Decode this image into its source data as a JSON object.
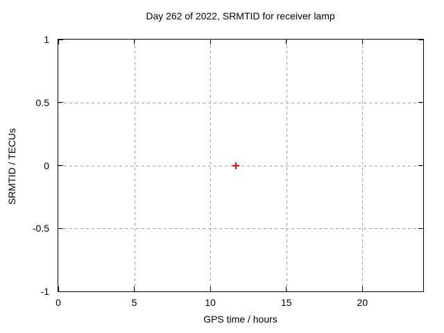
{
  "chart_data": {
    "type": "scatter",
    "title": "Day 262 of 2022, SRMTID for receiver lamp",
    "xlabel": "GPS time / hours",
    "ylabel": "SRMTID / TECUs",
    "xlim": [
      0,
      24
    ],
    "ylim": [
      -1,
      1
    ],
    "x_ticks": [
      0,
      5,
      10,
      15,
      20
    ],
    "x_tick_labels": [
      "0",
      "5",
      "10",
      "15",
      "20"
    ],
    "y_ticks": [
      -1,
      -0.5,
      0,
      0.5,
      1
    ],
    "y_tick_labels": [
      "-1",
      "-0.5",
      "0",
      "0.5",
      "1"
    ],
    "grid": true,
    "legend": "none",
    "series": [
      {
        "name": "SRMTID",
        "marker": "plus",
        "color": "#ff0000",
        "points": [
          {
            "x": 11.7,
            "y": 0.0
          }
        ]
      }
    ],
    "colors": {
      "background": "#ffffff",
      "border": "#000000",
      "grid": "#a0a0a0",
      "text": "#000000",
      "marker": "#ff0000"
    }
  }
}
